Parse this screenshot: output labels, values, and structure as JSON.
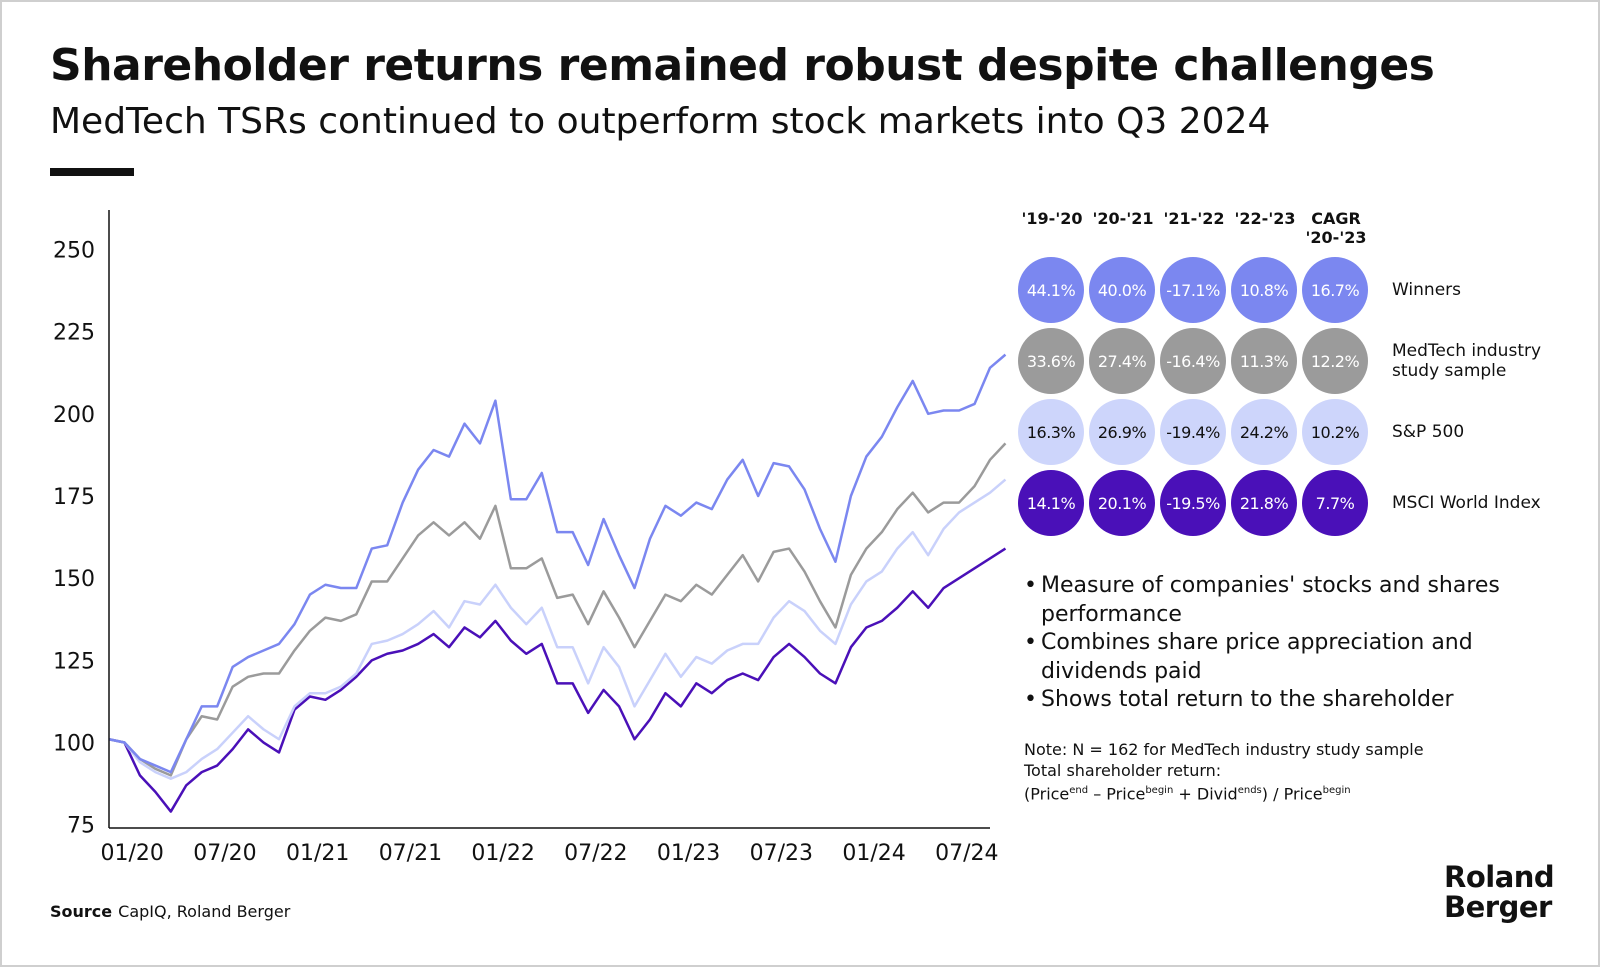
{
  "title": "Shareholder returns remained robust despite challenges",
  "subtitle": "MedTech TSRs continued to outperform stock markets into Q3 2024",
  "chart_data": {
    "type": "line",
    "x_ticks": [
      "01/20",
      "07/20",
      "01/21",
      "07/21",
      "01/22",
      "07/22",
      "01/23",
      "07/23",
      "01/24",
      "07/24"
    ],
    "y_ticks": [
      75,
      100,
      125,
      150,
      175,
      200,
      225,
      250
    ],
    "ylim": [
      74,
      262
    ],
    "x_range_months": [
      -1.5,
      55.5
    ],
    "series": [
      {
        "name": "Winners",
        "color": "#7b87f0",
        "values": [
          101,
          100,
          95,
          93,
          91,
          101,
          111,
          111,
          123,
          126,
          128,
          130,
          136,
          145,
          148,
          147,
          147,
          159,
          160,
          173,
          183,
          189,
          187,
          197,
          191,
          204,
          174,
          174,
          182,
          164,
          164,
          154,
          168,
          157,
          147,
          162,
          172,
          169,
          173,
          171,
          180,
          186,
          175,
          185,
          184,
          177,
          165,
          155,
          175,
          187,
          193,
          202,
          210,
          200,
          201,
          201,
          203,
          214,
          218
        ]
      },
      {
        "name": "MedTech industry study sample",
        "color": "#9b9b9b",
        "values": [
          101,
          100,
          95,
          92,
          90,
          101,
          108,
          107,
          117,
          120,
          121,
          121,
          128,
          134,
          138,
          137,
          139,
          149,
          149,
          156,
          163,
          167,
          163,
          167,
          162,
          172,
          153,
          153,
          156,
          144,
          145,
          136,
          146,
          138,
          129,
          137,
          145,
          143,
          148,
          145,
          151,
          157,
          149,
          158,
          159,
          152,
          143,
          135,
          151,
          159,
          164,
          171,
          176,
          170,
          173,
          173,
          178,
          186,
          191
        ]
      },
      {
        "name": "S&P 500",
        "color": "#c9d1fb",
        "values": [
          101,
          100,
          94,
          91,
          89,
          91,
          95,
          98,
          103,
          108,
          104,
          101,
          111,
          115,
          115,
          117,
          121,
          130,
          131,
          133,
          136,
          140,
          135,
          143,
          142,
          148,
          141,
          136,
          141,
          129,
          129,
          118,
          129,
          123,
          111,
          119,
          127,
          120,
          126,
          124,
          128,
          130,
          130,
          138,
          143,
          140,
          134,
          130,
          142,
          149,
          152,
          159,
          164,
          157,
          165,
          170,
          173,
          176,
          180
        ]
      },
      {
        "name": "MSCI World Index",
        "color": "#4a10b8",
        "values": [
          101,
          100,
          90,
          85,
          79,
          87,
          91,
          93,
          98,
          104,
          100,
          97,
          110,
          114,
          113,
          116,
          120,
          125,
          127,
          128,
          130,
          133,
          129,
          135,
          132,
          137,
          131,
          127,
          130,
          118,
          118,
          109,
          116,
          111,
          101,
          107,
          115,
          111,
          118,
          115,
          119,
          121,
          119,
          126,
          130,
          126,
          121,
          118,
          129,
          135,
          137,
          141,
          146,
          141,
          147,
          150,
          153,
          156,
          159
        ]
      }
    ]
  },
  "table": {
    "columns": [
      {
        "line1": "'19-'20",
        "line2": ""
      },
      {
        "line1": "'20-'21",
        "line2": ""
      },
      {
        "line1": "'21-'22",
        "line2": ""
      },
      {
        "line1": "'22-'23",
        "line2": ""
      },
      {
        "line1": "CAGR",
        "line2": "'20-'23"
      }
    ],
    "rows": [
      {
        "label": "Winners",
        "bg": "#7b87f0",
        "fg": "#ffffff",
        "values": [
          "44.1%",
          "40.0%",
          "-17.1%",
          "10.8%",
          "16.7%"
        ]
      },
      {
        "label": "MedTech industry study sample",
        "bg": "#9b9b9b",
        "fg": "#ffffff",
        "values": [
          "33.6%",
          "27.4%",
          "-16.4%",
          "11.3%",
          "12.2%"
        ]
      },
      {
        "label": "S&P 500",
        "bg": "#cdd5fb",
        "fg": "#111111",
        "values": [
          "16.3%",
          "26.9%",
          "-19.4%",
          "24.2%",
          "10.2%"
        ]
      },
      {
        "label": "MSCI World Index",
        "bg": "#4a10b8",
        "fg": "#ffffff",
        "values": [
          "14.1%",
          "20.1%",
          "-19.5%",
          "21.8%",
          "7.7%"
        ]
      }
    ]
  },
  "bullets": [
    "Measure of companies' stocks and shares performance",
    "Combines share price appreciation and dividends paid",
    "Shows total return to the shareholder"
  ],
  "note": {
    "line1": "Note: N = 162 for MedTech industry study sample",
    "line2": "Total shareholder return:",
    "formula": {
      "open": "(Price",
      "sup1": "end",
      "minus": " – Price",
      "sup2": "begin",
      "plus": " + Divid",
      "sup3": "ends",
      "close": ") / Price",
      "sup4": "begin"
    }
  },
  "source": {
    "label": "Source",
    "text": "CapIQ, Roland Berger"
  },
  "logo": {
    "line1": "Roland",
    "line2": "Berger"
  }
}
